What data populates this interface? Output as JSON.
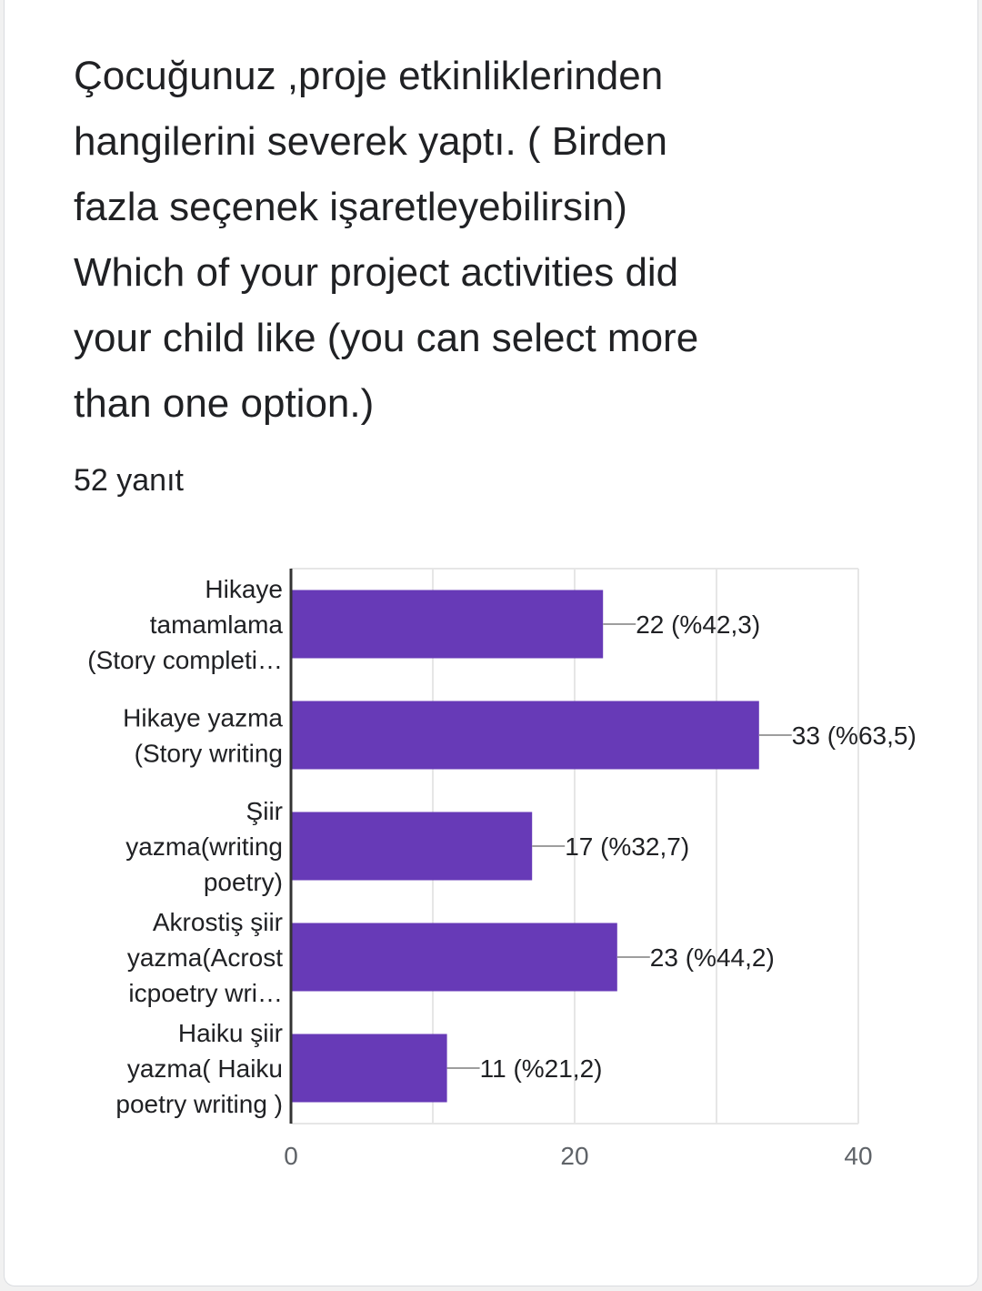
{
  "question": {
    "lines": [
      "Çocuğunuz ,proje etkinliklerinden",
      "hangilerini severek yaptı. ( Birden",
      "fazla seçenek işaretleyebilirsin)",
      "Which of your project activities did",
      "your child like (you can select more",
      "than one option.)"
    ]
  },
  "responses_label": "52 yanıt",
  "colors": {
    "bar": "#673ab7",
    "text": "#202124",
    "axis": "#333333",
    "grid": "#e6e6e6",
    "leader": "#9e9e9e"
  },
  "chart_data": {
    "type": "bar",
    "orientation": "horizontal",
    "categories": [
      [
        "Hikaye",
        "tamamlama",
        "(Story completi…"
      ],
      [
        "Hikaye yazma",
        "(Story writing"
      ],
      [
        "Şiir",
        "yazma(writing",
        "poetry)"
      ],
      [
        "Akrostiş şiir",
        "yazma(Acrost",
        "icpoetry wri…"
      ],
      [
        "Haiku şiir",
        "yazma( Haiku",
        "poetry writing )"
      ]
    ],
    "values": [
      22,
      33,
      17,
      23,
      11
    ],
    "value_labels": [
      "22 (%42,3)",
      "33 (%63,5)",
      "17 (%32,7)",
      "23 (%44,2)",
      "11 (%21,2)"
    ],
    "xlim": [
      0,
      40
    ],
    "xticks": [
      0,
      20,
      40
    ],
    "xtick_labels": [
      "0",
      "20",
      "40"
    ],
    "grid": true
  }
}
